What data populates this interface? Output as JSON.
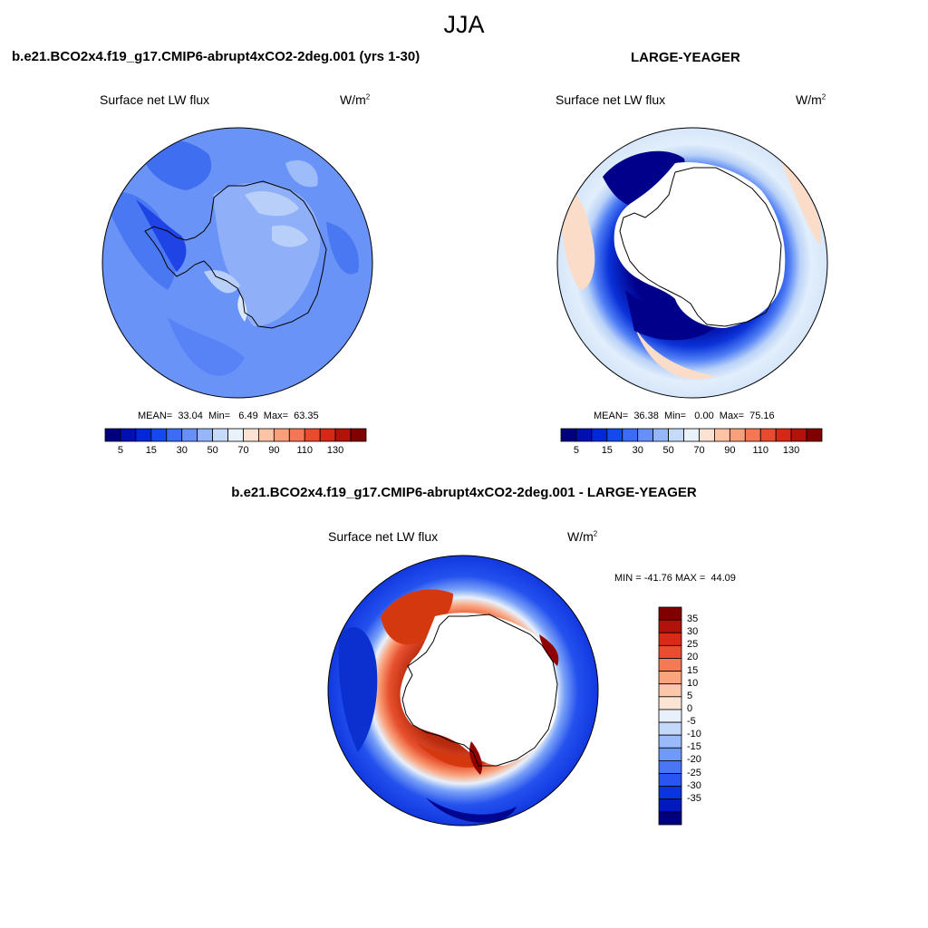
{
  "title": "JJA",
  "colors": {
    "abs_scale": [
      "#00007f",
      "#0010b0",
      "#0028d8",
      "#1449ee",
      "#3a6cf5",
      "#6690f8",
      "#96b6fa",
      "#c6daf9",
      "#e9f1fa",
      "#fbe2d3",
      "#fcc3a6",
      "#f9a07a",
      "#f57654",
      "#ea4a2e",
      "#d72716",
      "#b4110a",
      "#800000"
    ],
    "diff_scale": [
      "#00007f",
      "#0018c0",
      "#0a34e0",
      "#2a55f0",
      "#4a76f6",
      "#709af9",
      "#9abafa",
      "#c4d8fa",
      "#e8f0fb",
      "#fbe4d4",
      "#fcc6a9",
      "#f9a47e",
      "#f47a56",
      "#ea4c2d",
      "#d82a14",
      "#b3120a",
      "#800000"
    ]
  },
  "panels": [
    {
      "id": "model",
      "case_title": "b.e21.BCO2x4.f19_g17.CMIP6-abrupt4xCO2-2deg.001 (yrs 1-30)",
      "variable": "Surface net LW flux",
      "units_base": "W/m",
      "units_exp": "2",
      "stats": "MEAN=  33.04  Min=   6.49  Max=  63.35"
    },
    {
      "id": "obs",
      "case_title": "LARGE-YEAGER",
      "variable": "Surface net LW flux",
      "units_base": "W/m",
      "units_exp": "2",
      "stats": "MEAN=  36.38  Min=   0.00  Max=  75.16"
    }
  ],
  "abs_colorbar_ticks": [
    "5",
    "15",
    "30",
    "50",
    "70",
    "90",
    "110",
    "130"
  ],
  "diff_panel": {
    "title": "b.e21.BCO2x4.f19_g17.CMIP6-abrupt4xCO2-2deg.001 - LARGE-YEAGER",
    "variable": "Surface net LW flux",
    "units_base": "W/m",
    "units_exp": "2",
    "minmax": "MIN = -41.76 MAX =  44.09",
    "colorbar_ticks": [
      "35",
      "30",
      "25",
      "20",
      "15",
      "10",
      "5",
      "0",
      "-5",
      "-10",
      "-15",
      "-20",
      "-25",
      "-30",
      "-35"
    ]
  }
}
